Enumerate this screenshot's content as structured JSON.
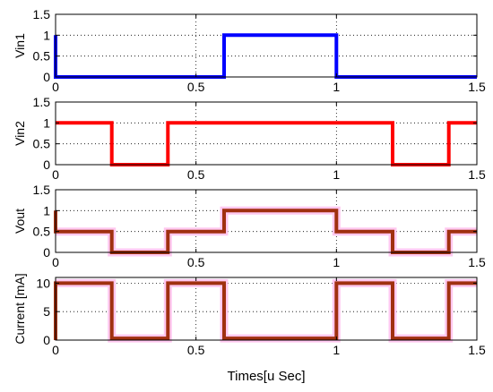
{
  "chart_data": {
    "type": "line",
    "xlabel": "Times[u Sec]",
    "x_ticks": [
      "0",
      "0.5",
      "1",
      "1.5"
    ],
    "xlim": [
      0,
      1.5
    ],
    "grid": true,
    "panels": [
      {
        "ylabel": "Vin1",
        "ylim": [
          0,
          1.5
        ],
        "y_ticks": [
          "0",
          "0.5",
          "1",
          "1.5"
        ],
        "series": [
          {
            "color": "#0000ff",
            "x": [
              0,
              0,
              0.6,
              0.6,
              1.0,
              1.0,
              1.5
            ],
            "y": [
              1,
              0,
              0,
              1,
              1,
              0,
              0
            ]
          }
        ]
      },
      {
        "ylabel": "Vin2",
        "ylim": [
          0,
          1.5
        ],
        "y_ticks": [
          "0",
          "0.5",
          "1",
          "1.5"
        ],
        "series": [
          {
            "color": "#ff0000",
            "x": [
              0,
              0.2,
              0.2,
              0.4,
              0.4,
              1.2,
              1.2,
              1.4,
              1.4,
              1.5
            ],
            "y": [
              1,
              1,
              0,
              0,
              1,
              1,
              0,
              0,
              1,
              1
            ]
          }
        ]
      },
      {
        "ylabel": "Vout",
        "ylim": [
          0,
          1.5
        ],
        "y_ticks": [
          "0",
          "0.5",
          "1",
          "1.5"
        ],
        "series": [
          {
            "color": "#ffc8f0",
            "x": [
              0,
              0.2,
              0.2,
              0.4,
              0.4,
              0.6,
              0.6,
              1.0,
              1.0,
              1.2,
              1.2,
              1.4,
              1.4,
              1.5
            ],
            "y": [
              0.5,
              0.5,
              0,
              0,
              0.5,
              0.5,
              1,
              1,
              0.5,
              0.5,
              0,
              0,
              0.5,
              0.5
            ]
          },
          {
            "color": "#a03010",
            "x": [
              0,
              0,
              0.2,
              0.2,
              0.4,
              0.4,
              0.6,
              0.6,
              1.0,
              1.0,
              1.2,
              1.2,
              1.4,
              1.4,
              1.5
            ],
            "y": [
              1,
              0.5,
              0.5,
              0,
              0,
              0.5,
              0.5,
              1,
              1,
              0.5,
              0.5,
              0,
              0,
              0.5,
              0.5
            ]
          }
        ]
      },
      {
        "ylabel": "Current [mA]",
        "ylim": [
          0,
          11
        ],
        "y_ticks": [
          "0",
          "5",
          "10"
        ],
        "y_tick_values": [
          0,
          5,
          10
        ],
        "series": [
          {
            "color": "#ffc8f0",
            "x": [
              0,
              0.2,
              0.2,
              0.4,
              0.4,
              0.6,
              0.6,
              1.0,
              1.0,
              1.2,
              1.2,
              1.4,
              1.4,
              1.5
            ],
            "y": [
              10,
              10,
              0.3,
              0.3,
              10,
              10,
              0.3,
              0.3,
              10,
              10,
              0.3,
              0.3,
              10,
              10
            ]
          },
          {
            "color": "#a03010",
            "x": [
              0,
              0,
              0.2,
              0.2,
              0.4,
              0.4,
              0.6,
              0.6,
              1.0,
              1.0,
              1.2,
              1.2,
              1.4,
              1.4,
              1.5
            ],
            "y": [
              0,
              10,
              10,
              0.3,
              0.3,
              10,
              10,
              0.3,
              0.3,
              10,
              10,
              0.3,
              0.3,
              10,
              10
            ]
          }
        ]
      }
    ]
  }
}
